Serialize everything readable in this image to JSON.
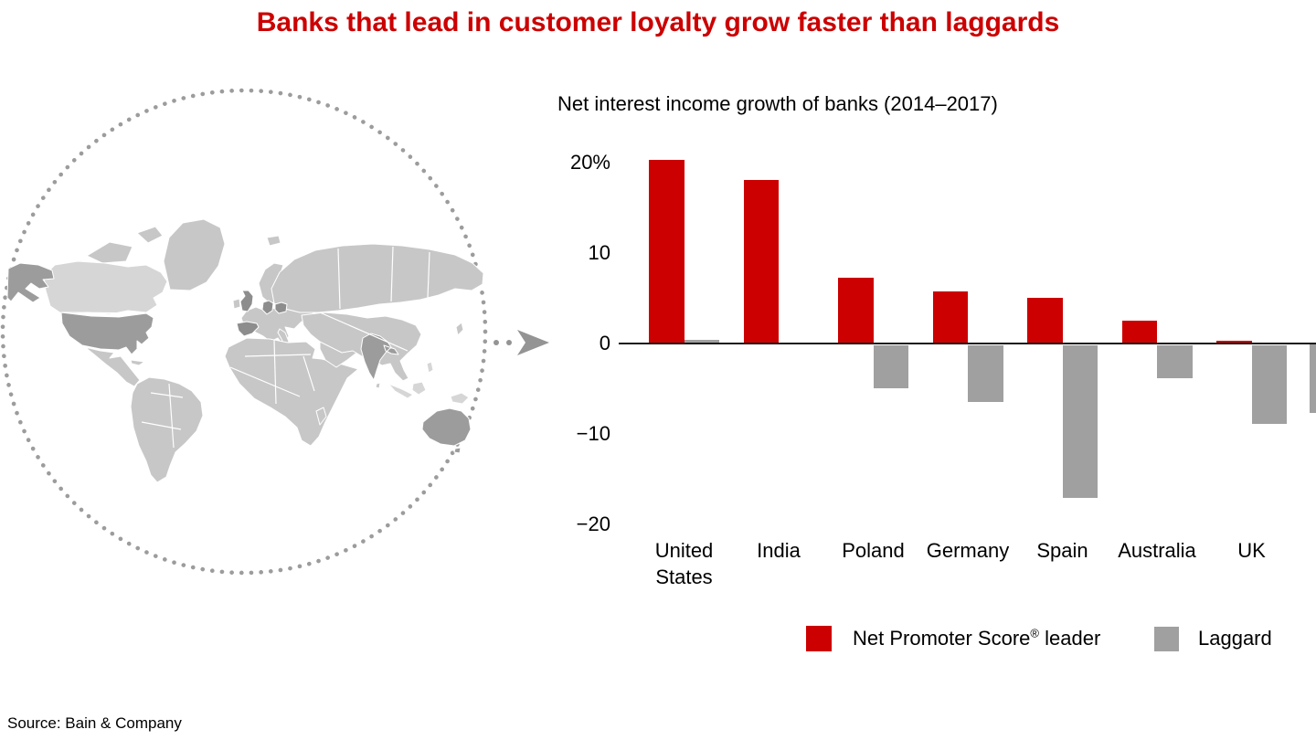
{
  "page": {
    "title": "Banks that lead in customer loyalty grow faster than laggards",
    "source": "Source: Bain & Company",
    "colors": {
      "title_red": "#cc0000",
      "bar_red": "#cc0000",
      "bar_gray": "#a0a0a0",
      "axis": "#1a1a1a",
      "map_land": "#c7c7c7",
      "map_land_light": "#d6d6d6",
      "map_highlight": "#9c9c9c",
      "map_highlight_dark": "#8d8d8d",
      "map_dots": "#9c9c9c",
      "arrow": "#949494"
    }
  },
  "map": {
    "kind": "world-map-in-dotted-circle",
    "highlighted_countries": [
      "United States",
      "United Kingdom",
      "Germany",
      "Poland",
      "Spain",
      "India",
      "Australia"
    ]
  },
  "chart_data": {
    "type": "bar",
    "title": "Net interest income growth of banks (2014–2017)",
    "categories": [
      "United States",
      "India",
      "Poland",
      "Germany",
      "Spain",
      "Australia",
      "UK"
    ],
    "series": [
      {
        "name": "Net Promoter Score® leader",
        "color": "#cc0000",
        "values": [
          20.3,
          18.1,
          7.3,
          5.8,
          5.1,
          2.5,
          0.3
        ]
      },
      {
        "name": "Laggard",
        "color": "#a0a0a0",
        "values": [
          0.4,
          0.1,
          -4.7,
          -6.3,
          -16.9,
          -3.6,
          -8.7
        ]
      }
    ],
    "ylabel": "",
    "ylim": [
      -20,
      22
    ],
    "yticks": [
      {
        "value": 20,
        "label": "20%"
      },
      {
        "value": 10,
        "label": "10"
      },
      {
        "value": 0,
        "label": "0"
      },
      {
        "value": -10,
        "label": "−10"
      },
      {
        "value": -20,
        "label": "−20"
      }
    ],
    "grid": false,
    "legend_position": "bottom"
  },
  "legend": {
    "leader_main": "Net Promoter Score",
    "leader_sup": "®",
    "leader_tail": " leader",
    "laggard": "Laggard"
  }
}
